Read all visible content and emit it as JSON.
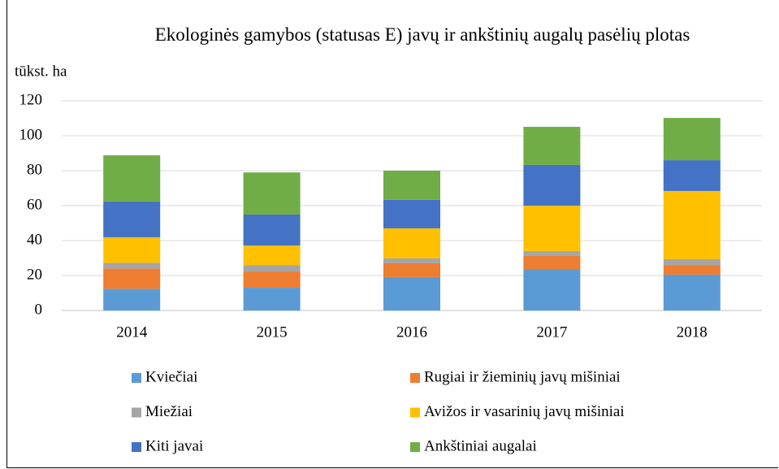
{
  "chart_data": {
    "type": "stacked_bar",
    "title": "Ekologinės gamybos (statusas E) javų ir ankštinių augalų pasėlių plotas",
    "y_label": "tūkst. ha",
    "categories": [
      "2014",
      "2015",
      "2016",
      "2017",
      "2018"
    ],
    "series": [
      {
        "name": "Kviečiai",
        "color": "#5b9bd5",
        "values": [
          12.4,
          13,
          19.1,
          23.7,
          20.5
        ]
      },
      {
        "name": "Rugiai ir žieminių javų mišiniai",
        "color": "#ed7d31",
        "values": [
          11.6,
          9.3,
          7.9,
          7.5,
          5.5
        ]
      },
      {
        "name": "Miežiai",
        "color": "#a5a5a5",
        "values": [
          3.2,
          3.7,
          2.8,
          2.8,
          3.3
        ]
      },
      {
        "name": "Avižos ir vasarinių javų mišiniai",
        "color": "#ffc000",
        "values": [
          14.7,
          11.2,
          17.2,
          26,
          39.1
        ]
      },
      {
        "name": "Kiti javai",
        "color": "#4472c4",
        "values": [
          20.4,
          17.7,
          16.3,
          23.3,
          17.6
        ]
      },
      {
        "name": "Ankštiniai augalai",
        "color": "#70ad47",
        "values": [
          26.5,
          24.1,
          16.7,
          21.8,
          24.2
        ]
      }
    ],
    "ylim": [
      0,
      120
    ],
    "yticks": [
      0,
      20,
      40,
      60,
      80,
      100,
      120
    ],
    "grid": true
  }
}
